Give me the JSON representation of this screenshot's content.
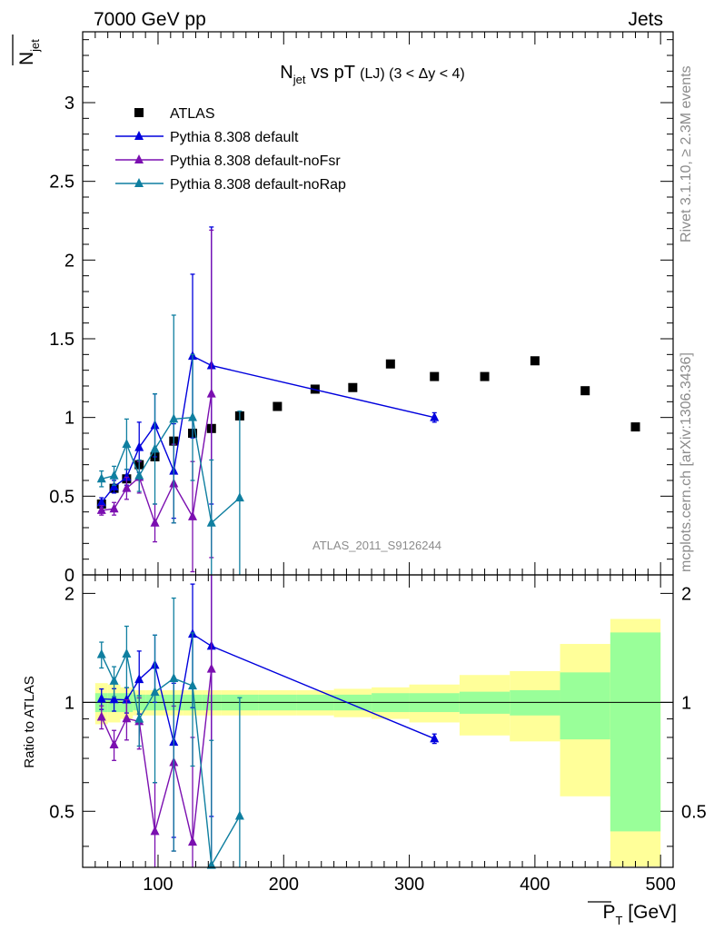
{
  "header": {
    "left": "7000 GeV pp",
    "right": "Jets"
  },
  "side": {
    "rivet": "Rivet 3.1.10, ≥ 2.3M events",
    "mcplots": "mcplots.cern.ch [arXiv:1306.3436]"
  },
  "watermark": "ATLAS_2011_S9126244",
  "legend": [
    "ATLAS",
    "Pythia 8.308 default",
    "Pythia 8.308 default-noFsr",
    "Pythia 8.308 default-noRap"
  ],
  "colors": {
    "data": "#000000",
    "default": "#0000dd",
    "noFsr": "#7b0fb0",
    "noRap": "#0f7fa0",
    "band_inner": "#99ff99",
    "band_outer": "#ffff99"
  },
  "chart_data": {
    "type": "scatter",
    "title": "N_jet vs pT (LJ) (3 < Δy < 4)",
    "xlabel": "P_T [GeV]",
    "ylabel": "N_jet",
    "ratio_ylabel": "Ratio to ATLAS",
    "xlim": [
      40,
      510
    ],
    "ylim": [
      0,
      3.45
    ],
    "ratio_ylim": [
      0.35,
      2.25
    ],
    "xticks": [
      100,
      200,
      300,
      400,
      500
    ],
    "yticks": [
      0,
      0.5,
      1,
      1.5,
      2,
      2.5,
      3
    ],
    "ratio_yticks": [
      0.5,
      1,
      2
    ],
    "data": {
      "name": "ATLAS",
      "x": [
        55,
        65,
        75,
        85,
        97.5,
        112.5,
        127.5,
        142.5,
        165,
        195,
        225,
        255,
        285,
        320,
        360,
        400,
        440,
        480
      ],
      "y": [
        0.45,
        0.55,
        0.61,
        0.7,
        0.75,
        0.85,
        0.9,
        0.93,
        1.01,
        1.07,
        1.18,
        1.19,
        1.34,
        1.26,
        1.26,
        1.36,
        1.17,
        0.94
      ],
      "xerr": [
        5,
        5,
        5,
        5,
        7.5,
        7.5,
        7.5,
        7.5,
        15,
        15,
        15,
        15,
        15,
        20,
        20,
        20,
        20,
        20
      ],
      "band_outer": [
        0.13,
        0.12,
        0.1,
        0.08,
        0.08,
        0.08,
        0.08,
        0.08,
        0.08,
        0.08,
        0.08,
        0.09,
        0.1,
        0.12,
        0.19,
        0.22,
        0.45,
        0.7
      ],
      "band_inner": [
        0.06,
        0.06,
        0.06,
        0.05,
        0.05,
        0.05,
        0.05,
        0.05,
        0.05,
        0.05,
        0.05,
        0.05,
        0.06,
        0.06,
        0.07,
        0.08,
        0.21,
        0.56
      ]
    },
    "series": [
      {
        "name": "Pythia 8.308 default",
        "x": [
          55,
          65,
          75,
          85,
          97.5,
          112.5,
          127.5,
          142.5,
          320
        ],
        "y": [
          0.46,
          0.56,
          0.62,
          0.81,
          0.95,
          0.66,
          1.39,
          1.33,
          1.0
        ],
        "err": [
          0.03,
          0.04,
          0.05,
          0.16,
          0.2,
          0.3,
          0.52,
          0.88,
          0.03
        ]
      },
      {
        "name": "Pythia 8.308 default-noFsr",
        "x": [
          55,
          65,
          75,
          85,
          97.5,
          112.5,
          127.5,
          142.5
        ],
        "y": [
          0.41,
          0.42,
          0.55,
          0.62,
          0.33,
          0.58,
          0.37,
          1.15
        ],
        "err": [
          0.03,
          0.04,
          0.07,
          0.1,
          0.12,
          0.25,
          0.35,
          1.04
        ]
      },
      {
        "name": "Pythia 8.308 default-noRap",
        "x": [
          55,
          65,
          75,
          85,
          97.5,
          112.5,
          127.5,
          142.5,
          165
        ],
        "y": [
          0.61,
          0.63,
          0.83,
          0.63,
          0.8,
          0.99,
          1.0,
          0.33,
          0.49
        ],
        "err": [
          0.05,
          0.06,
          0.16,
          0.1,
          0.35,
          0.66,
          0.4,
          0.4,
          0.55
        ]
      }
    ]
  }
}
